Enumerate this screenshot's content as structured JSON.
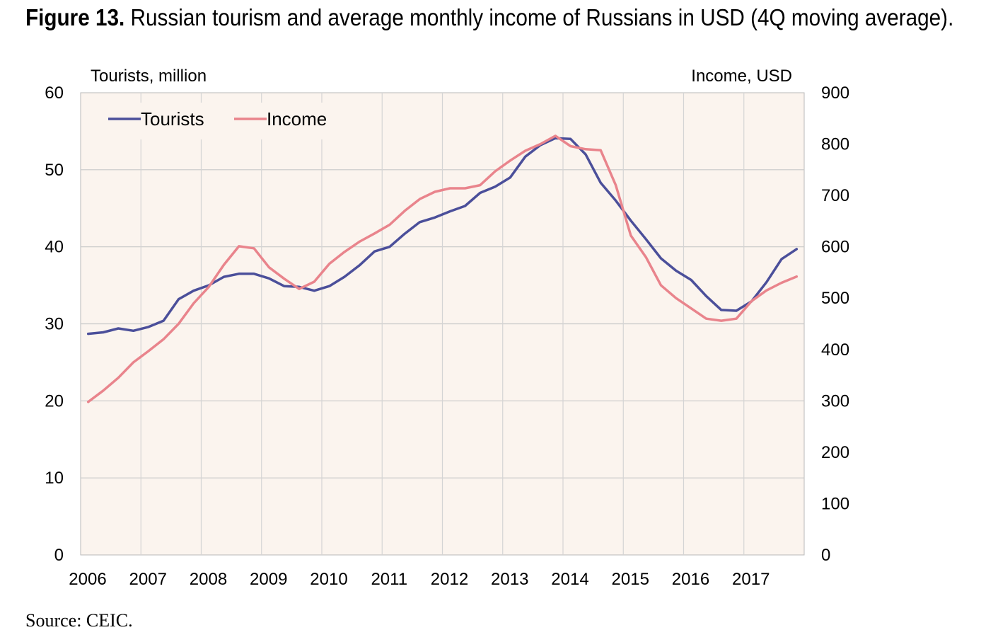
{
  "figure": {
    "label": "Figure 13.",
    "title": "Russian tourism and average monthly income of Russians in USD (4Q moving average).",
    "source": "Source: CEIC."
  },
  "colors": {
    "tourists": "#4b4f9a",
    "income": "#e9848c",
    "plot_background": "#fbf4ee",
    "grid": "#c8c8c8"
  },
  "chart_data": {
    "type": "line",
    "title": "Russian tourism and average monthly income of Russians in USD (4Q moving average)",
    "left_axis": {
      "label": "Tourists, million",
      "ylim": [
        0,
        60
      ],
      "ticks": [
        0,
        10,
        20,
        30,
        40,
        50,
        60
      ]
    },
    "right_axis": {
      "label": "Income, USD",
      "ylim": [
        0,
        900
      ],
      "ticks": [
        0,
        100,
        200,
        300,
        400,
        500,
        600,
        700,
        800,
        900
      ]
    },
    "x_ticks": [
      "2006",
      "2007",
      "2008",
      "2009",
      "2010",
      "2011",
      "2012",
      "2013",
      "2014",
      "2015",
      "2016",
      "2017"
    ],
    "x": [
      "2006Q1",
      "2006Q2",
      "2006Q3",
      "2006Q4",
      "2007Q1",
      "2007Q2",
      "2007Q3",
      "2007Q4",
      "2008Q1",
      "2008Q2",
      "2008Q3",
      "2008Q4",
      "2009Q1",
      "2009Q2",
      "2009Q3",
      "2009Q4",
      "2010Q1",
      "2010Q2",
      "2010Q3",
      "2010Q4",
      "2011Q1",
      "2011Q2",
      "2011Q3",
      "2011Q4",
      "2012Q1",
      "2012Q2",
      "2012Q3",
      "2012Q4",
      "2013Q1",
      "2013Q2",
      "2013Q3",
      "2013Q4",
      "2014Q1",
      "2014Q2",
      "2014Q3",
      "2014Q4",
      "2015Q1",
      "2015Q2",
      "2015Q3",
      "2015Q4",
      "2016Q1",
      "2016Q2",
      "2016Q3",
      "2016Q4",
      "2017Q1",
      "2017Q2",
      "2017Q3",
      "2017Q4"
    ],
    "grid": true,
    "legend_position": "top-left",
    "series": [
      {
        "name": "Tourists",
        "axis": "left",
        "values": [
          28.7,
          28.9,
          29.4,
          29.1,
          29.6,
          30.4,
          33.2,
          34.3,
          35.0,
          36.1,
          36.5,
          36.5,
          35.9,
          34.9,
          34.8,
          34.3,
          34.9,
          36.1,
          37.6,
          39.4,
          40.0,
          41.7,
          43.2,
          43.8,
          44.6,
          45.3,
          47.0,
          47.8,
          49.0,
          51.7,
          53.2,
          54.1,
          54.0,
          52.0,
          48.3,
          46.0,
          43.4,
          41.0,
          38.5,
          36.9,
          35.7,
          33.6,
          31.8,
          31.7,
          32.9,
          35.4,
          38.4,
          39.7
        ]
      },
      {
        "name": "Income",
        "axis": "right",
        "values": [
          298,
          320,
          345,
          375,
          397,
          420,
          450,
          490,
          522,
          565,
          601,
          597,
          560,
          538,
          518,
          532,
          567,
          590,
          610,
          626,
          643,
          670,
          693,
          707,
          714,
          714,
          720,
          747,
          768,
          787,
          800,
          816,
          796,
          790,
          788,
          720,
          622,
          580,
          525,
          500,
          480,
          460,
          456,
          460,
          494,
          515,
          530,
          542
        ]
      }
    ]
  }
}
